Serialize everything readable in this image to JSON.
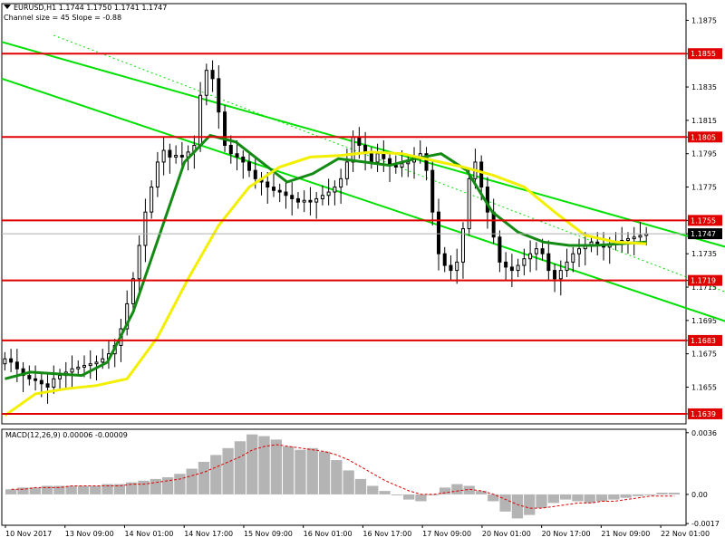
{
  "header": {
    "title": "EURUSD,H1  1.1744 1.1750 1.1741 1.1747",
    "channel_note": "Channel size = 45 Slope = -0.88"
  },
  "macd_label": "MACD(12,26,9) 0.00006 -0.00009",
  "chart_data": [
    {
      "type": "candlestick",
      "title": "EURUSD,H1",
      "symbol": "EURUSD",
      "timeframe": "H1",
      "ohlc_last": {
        "open": 1.1744,
        "high": 1.175,
        "low": 1.1741,
        "close": 1.1747
      },
      "ylim": [
        1.1633,
        1.1885
      ],
      "yticks": [
        1.1875,
        1.1855,
        1.1835,
        1.1815,
        1.1805,
        1.1795,
        1.1775,
        1.1755,
        1.1747,
        1.1735,
        1.1719,
        1.1715,
        1.1695,
        1.1683,
        1.1675,
        1.1655,
        1.1639
      ],
      "ytick_labels": [
        "1.1875",
        "1.1855",
        "1.1835",
        "1.1815",
        "1.1805",
        "1.1795",
        "1.1775",
        "1.1755",
        "1.1747",
        "1.1735",
        "1.1719",
        "1.1715",
        "1.1695",
        "1.1683",
        "1.1675",
        "1.1655",
        "1.1639"
      ],
      "xticks": [
        0,
        11,
        22,
        33,
        44,
        55,
        66,
        77,
        88,
        99,
        110,
        121
      ],
      "xtick_labels": [
        "10 Nov 2017",
        "13 Nov 09:00",
        "14 Nov 01:00",
        "14 Nov 17:00",
        "15 Nov 09:00",
        "16 Nov 01:00",
        "16 Nov 17:00",
        "17 Nov 09:00",
        "20 Nov 01:00",
        "20 Nov 17:00",
        "21 Nov 09:00",
        "22 Nov 01:00"
      ],
      "horizontal_levels": [
        {
          "value": 1.1855,
          "label": "1.1855",
          "color": "#e00000"
        },
        {
          "value": 1.1805,
          "label": "1.1805",
          "color": "#e00000"
        },
        {
          "value": 1.1755,
          "label": "1.1755",
          "color": "#e00000"
        },
        {
          "value": 1.1719,
          "label": "1.1719",
          "color": "#e00000"
        },
        {
          "value": 1.1683,
          "label": "1.1683",
          "color": "#e00000"
        },
        {
          "value": 1.1639,
          "label": "1.1639",
          "color": "#e00000"
        }
      ],
      "current_price": {
        "value": 1.1747,
        "label": "1.1747"
      },
      "series": [
        {
          "kind": "close_approx",
          "values": [
            1.1672,
            1.167,
            1.1666,
            1.1662,
            1.166,
            1.1659,
            1.1657,
            1.1655,
            1.166,
            1.1662,
            1.1664,
            1.1666,
            1.1667,
            1.1668,
            1.1669,
            1.167,
            1.1672,
            1.1675,
            1.168,
            1.169,
            1.1705,
            1.172,
            1.174,
            1.176,
            1.1775,
            1.179,
            1.1797,
            1.1793,
            1.1794,
            1.1793,
            1.1796,
            1.18,
            1.183,
            1.1845,
            1.184,
            1.182,
            1.18,
            1.1795,
            1.1793,
            1.179,
            1.1785,
            1.178,
            1.1778,
            1.1775,
            1.1773,
            1.1772,
            1.177,
            1.1768,
            1.1766,
            1.1767,
            1.1766,
            1.1768,
            1.177,
            1.1772,
            1.1775,
            1.178,
            1.179,
            1.1805,
            1.18,
            1.1795,
            1.179,
            1.1795,
            1.1792,
            1.1788,
            1.1787,
            1.1789,
            1.179,
            1.1793,
            1.1795,
            1.1785,
            1.176,
            1.1735,
            1.1728,
            1.1725,
            1.173,
            1.175,
            1.178,
            1.179,
            1.1775,
            1.176,
            1.1745,
            1.173,
            1.1727,
            1.1725,
            1.1728,
            1.1732,
            1.1735,
            1.1738,
            1.1735,
            1.1725,
            1.172,
            1.1725,
            1.173,
            1.1735,
            1.1738,
            1.174,
            1.1742,
            1.174,
            1.1739,
            1.1741,
            1.1742,
            1.1743,
            1.1744,
            1.1745,
            1.1746,
            1.1747
          ]
        },
        {
          "name": "",
          "kind": "ma_fast",
          "color": "#138a13",
          "values": [
            1.166,
            1.1664,
            1.1663,
            1.1662,
            1.167,
            1.17,
            1.1745,
            1.179,
            1.1806,
            1.1802,
            1.179,
            1.1778,
            1.1783,
            1.1792,
            1.179,
            1.1788,
            1.1792,
            1.1795,
            1.1785,
            1.176,
            1.1748,
            1.1742,
            1.174,
            1.174,
            1.1741,
            1.1742
          ]
        },
        {
          "name": "",
          "kind": "ma_slow",
          "color": "#f2ef00",
          "values": [
            1.1638,
            1.1651,
            1.1654,
            1.1656,
            1.166,
            1.1685,
            1.172,
            1.1752,
            1.1775,
            1.1787,
            1.1793,
            1.1794,
            1.1796,
            1.1795,
            1.1791,
            1.1787,
            1.1782,
            1.1775,
            1.176,
            1.1746,
            1.1742,
            1.1741
          ]
        }
      ],
      "channel": {
        "upper": [
          [
            0,
            1.1862
          ],
          [
            118,
            1.1737
          ]
        ],
        "lower": [
          [
            0,
            1.184
          ],
          [
            118,
            1.1692
          ]
        ]
      }
    },
    {
      "type": "bar",
      "title": "MACD(12,26,9)",
      "ylim": [
        -0.0018,
        0.0038
      ],
      "yticks": [
        0.0036,
        0.0,
        -0.0017
      ],
      "ytick_labels": [
        "0.0036",
        "0.00",
        "-0.0017"
      ],
      "series": [
        {
          "name": "MACD",
          "values": [
            0.0003,
            0.0004,
            0.0004,
            0.0005,
            0.0005,
            0.0005,
            0.0005,
            0.0005,
            0.0006,
            0.0006,
            0.0007,
            0.0008,
            0.0009,
            0.001,
            0.0012,
            0.0015,
            0.0019,
            0.0023,
            0.0027,
            0.0031,
            0.0035,
            0.0034,
            0.0032,
            0.0028,
            0.0026,
            0.0027,
            0.0025,
            0.002,
            0.0014,
            0.0009,
            0.0005,
            0.0002,
            0.0,
            -0.0003,
            -0.0004,
            0.0,
            0.0004,
            0.0006,
            0.0005,
            0.0002,
            -0.0004,
            -0.001,
            -0.0014,
            -0.0012,
            -0.0008,
            -0.0005,
            -0.0003,
            -0.0004,
            -0.0005,
            -0.0004,
            -0.0003,
            -0.0002,
            -0.0001,
            0.0,
            0.0001,
            0.0001
          ]
        },
        {
          "name": "Signal",
          "values": [
            0.0003,
            0.0003,
            0.0004,
            0.0004,
            0.0004,
            0.0005,
            0.0005,
            0.0005,
            0.0005,
            0.0005,
            0.0006,
            0.0006,
            0.0007,
            0.0008,
            0.0009,
            0.0011,
            0.0013,
            0.0016,
            0.0019,
            0.0022,
            0.0026,
            0.0028,
            0.0029,
            0.0028,
            0.0027,
            0.0026,
            0.0025,
            0.0023,
            0.002,
            0.0016,
            0.0012,
            0.0008,
            0.0005,
            0.0002,
            0.0,
            0.0,
            0.0001,
            0.0002,
            0.0003,
            0.0002,
            0.0,
            -0.0003,
            -0.0006,
            -0.0008,
            -0.0008,
            -0.0007,
            -0.0006,
            -0.0005,
            -0.0005,
            -0.0004,
            -0.0004,
            -0.0003,
            -0.0002,
            -0.0001,
            -0.0001,
            -0.0001
          ]
        }
      ]
    }
  ],
  "colors": {
    "candle": "#000000",
    "level_line": "#e00000",
    "label_bg": "#e00000",
    "label_text": "#ffffff",
    "price_label_bg": "#000000",
    "channel": "#00e000",
    "bollinger": "#c040c0",
    "macd_hist": "#b4b4b4",
    "macd_signal": "#e00000"
  }
}
